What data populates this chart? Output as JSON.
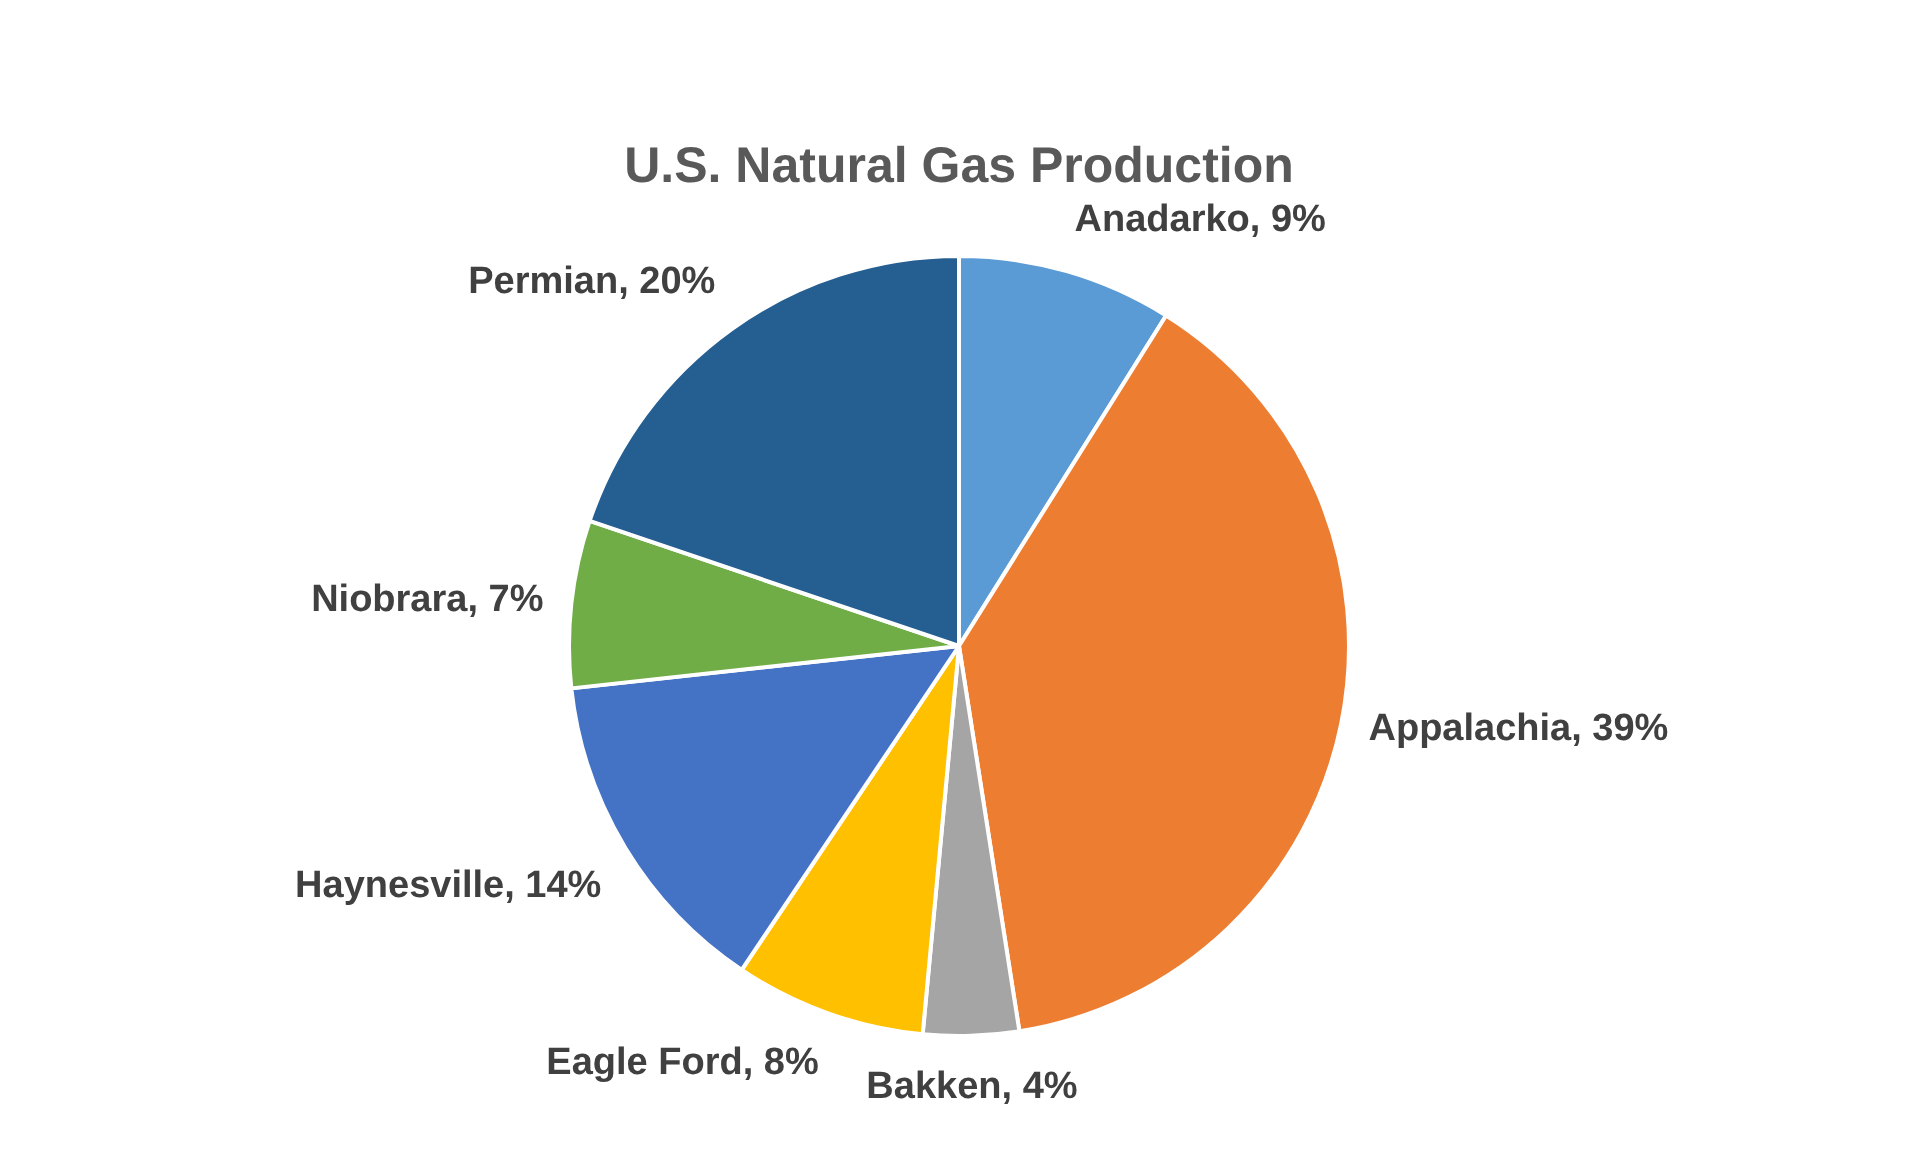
{
  "chart_data": {
    "type": "pie",
    "title": "U.S. Natural Gas Production",
    "categories": [
      "Anadarko",
      "Appalachia",
      "Bakken",
      "Eagle Ford",
      "Haynesville",
      "Niobrara",
      "Permian"
    ],
    "values": [
      9,
      39,
      4,
      8,
      14,
      7,
      20
    ],
    "colors": [
      "#5b9bd5",
      "#ed7d31",
      "#a5a5a5",
      "#ffc000",
      "#4472c4",
      "#70ad47",
      "#255e91"
    ],
    "value_labels": [
      "9%",
      "39%",
      "4%",
      "8%",
      "14%",
      "7%",
      "20%"
    ]
  }
}
